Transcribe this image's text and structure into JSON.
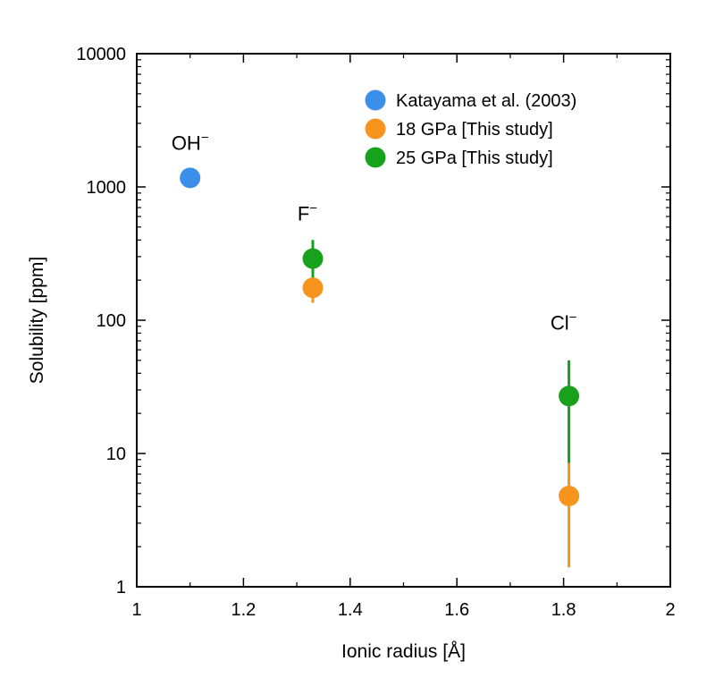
{
  "chart_data": {
    "type": "scatter",
    "xlabel": "Ionic radius [Å]",
    "ylabel": "Solubility [ppm]",
    "xlim": [
      1,
      2
    ],
    "ylim": [
      1,
      10000
    ],
    "yscale": "log",
    "x_ticks": [
      1,
      1.2,
      1.4,
      1.6,
      1.8,
      2
    ],
    "x_tick_labels": [
      "1",
      "1.2",
      "1.4",
      "1.6",
      "1.8",
      "2"
    ],
    "y_ticks": [
      1,
      10,
      100,
      1000,
      10000
    ],
    "y_tick_labels": [
      "1",
      "10",
      "100",
      "1000",
      "10000"
    ],
    "grid": false,
    "legend_position": "top-right",
    "series": [
      {
        "name": "Katayama et al. (2003)",
        "color": "#3b8eea",
        "points": [
          {
            "x": 1.1,
            "y": 1170,
            "err_low": null,
            "err_high": null
          }
        ]
      },
      {
        "name": "18 GPa [This study]",
        "color": "#f7941d",
        "points": [
          {
            "x": 1.33,
            "y": 175,
            "err_low": 135,
            "err_high": 215
          },
          {
            "x": 1.81,
            "y": 4.8,
            "err_low": 1.4,
            "err_high": 8.5
          }
        ]
      },
      {
        "name": "25 GPa [This study]",
        "color": "#17a11d",
        "points": [
          {
            "x": 1.33,
            "y": 290,
            "err_low": 190,
            "err_high": 400
          },
          {
            "x": 1.81,
            "y": 27,
            "err_low": 8.5,
            "err_high": 50
          }
        ]
      }
    ],
    "annotations": [
      {
        "text": "OH",
        "superscript": "−",
        "x": 1.1,
        "y": 1900
      },
      {
        "text": "F",
        "superscript": "−",
        "x": 1.32,
        "y": 560
      },
      {
        "text": "Cl",
        "superscript": "−",
        "x": 1.8,
        "y": 85
      }
    ]
  }
}
